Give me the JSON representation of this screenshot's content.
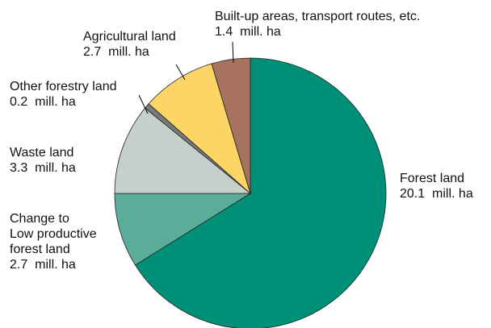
{
  "chart_data": {
    "type": "pie",
    "categories": [
      "Forest land",
      "Change to\nLow productive\nforest land",
      "Waste land",
      "Other forestry land",
      "Agricultural land",
      "Built-up areas, transport routes, etc."
    ],
    "values": [
      20.1,
      2.7,
      3.3,
      0.2,
      2.7,
      1.4
    ],
    "value_labels": [
      "20.1  mill. ha",
      "2.7  mill. ha",
      "3.3  mill. ha",
      "0.2  mill. ha",
      "2.7  mill. ha",
      "1.4  mill. ha"
    ],
    "colors": [
      "#009077",
      "#5aad98",
      "#c5d0cb",
      "#7a7a7a",
      "#fdd466",
      "#a87261"
    ]
  }
}
